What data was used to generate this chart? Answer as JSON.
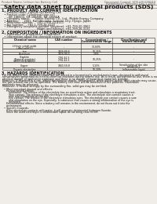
{
  "bg_color": "#f0ede8",
  "header_left": "Product Name: Lithium Ion Battery Cell",
  "header_right_line1": "Document Control: SDS-LIB-000010",
  "header_right_line2": "Established / Revision: Dec.1.2006",
  "title": "Safety data sheet for chemical products (SDS)",
  "section1_title": "1. PRODUCT AND COMPANY IDENTIFICATION",
  "section1_items": [
    "  • Product name: Lithium Ion Battery Cell",
    "  • Product code: Cylindrical-type cell",
    "       SIF-18650U, SIF-18650E, SIF-18650A",
    "  • Company name:      Sanyo Electric Co., Ltd., Mobile Energy Company",
    "  • Address:      2001, Kamimunaka, Sumoto-City, Hyogo, Japan",
    "  • Telephone number:    +81-(799)-20-4111",
    "  • Fax number:    +81-1-799-26-4120",
    "  • Emergency telephone number (daytime): +81-799-20-3962",
    "                                       (Night and holiday): +81-799-26-3131"
  ],
  "section2_title": "2. COMPOSITION / INFORMATION ON INGREDIENTS",
  "section2_sub1": "  • Substance or preparation: Preparation",
  "section2_sub2": "  • Information about the chemical nature of product:",
  "table_col_names": [
    "Chemical name",
    "CAS number",
    "Concentration /\nConcentration range",
    "Classification and\nhazard labeling"
  ],
  "table_rows": [
    [
      "Lithium cobalt oxide\n(LiMnCoxNiO2)",
      "-",
      "30-60%",
      "-"
    ],
    [
      "Iron",
      "7439-89-6",
      "10-25%",
      "-"
    ],
    [
      "Aluminum",
      "7429-90-5",
      "2-6%",
      "-"
    ],
    [
      "Graphite\n(Natural graphite)\n(Artificial graphite)",
      "7782-42-5\n7782-42-5",
      "10-25%",
      "-"
    ],
    [
      "Copper",
      "7440-50-8",
      "5-15%",
      "Sensitization of the skin\ngroup No.2"
    ],
    [
      "Organic electrolyte",
      "-",
      "10-20%",
      "Inflammable liquid"
    ]
  ],
  "section3_title": "3. HAZARDS IDENTIFICATION",
  "section3_text": [
    "For the battery cell, chemical materials are stored in a hermetically sealed metal case, designed to withstand",
    "temperatures generated by electro-chemical reactions during normal use. As a result, during normal use, there is no",
    "physical danger of ignition or explosion and there is no danger of hazardous materials leakage.",
    "However, if exposed to a fire, added mechanical shocks, decomposed, when electro-active short-circuits may cause,",
    "the gas release can not be operated. The battery cell case will be breached of fire patterns. Hazardous",
    "materials may be released.",
    "Moreover, if heated strongly by the surrounding fire, solid gas may be emitted.",
    " ",
    "  • Most important hazard and effects:",
    "      Human health effects:",
    "          Inhalation: The release of the electrolyte has an anesthesia action and stimulates a respiratory tract.",
    "          Skin contact: The release of the electrolyte stimulates a skin. The electrolyte skin contact causes a",
    "          sore and stimulation on the skin.",
    "          Eye contact: The release of the electrolyte stimulates eyes. The electrolyte eye contact causes a sore",
    "          and stimulation on the eye. Especially, a substance that causes a strong inflammation of the eye is",
    "          contained.",
    "      Environmental effects: Since a battery cell remains in the environment, do not throw out it into the",
    "      environment.",
    " ",
    "  • Specific hazards:",
    "      If the electrolyte contacts with water, it will generate detrimental hydrogen fluoride.",
    "      Since the used electrolyte is inflammable liquid, do not bring close to fire."
  ]
}
